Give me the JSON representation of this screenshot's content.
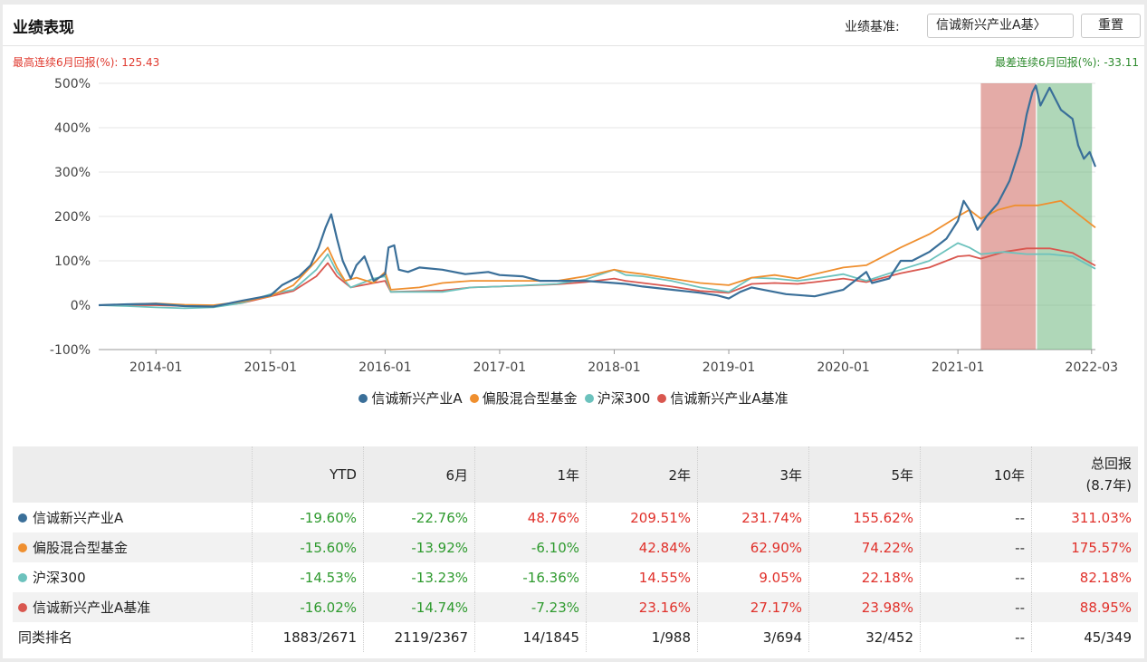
{
  "header": {
    "title": "业绩表现",
    "benchmark_label": "业绩基准:",
    "benchmark_value": "信诚新兴产业A基〉",
    "reset_label": "重置"
  },
  "stats": {
    "best_label": "最高连续6月回报(%):",
    "best_value": "125.43",
    "worst_label": "最差连续6月回报(%):",
    "worst_value": "-33.11"
  },
  "colors": {
    "fund": "#3a6f99",
    "peer": "#ef8f2f",
    "hs300": "#6cc2bd",
    "bench": "#d9574f",
    "best_band": "#c9574f",
    "worst_band": "#5fb071"
  },
  "chart_data": {
    "type": "line",
    "x_ticks": [
      "2014-01",
      "2015-01",
      "2016-01",
      "2017-01",
      "2018-01",
      "2019-01",
      "2020-01",
      "2021-01",
      "2022-03"
    ],
    "y_ticks": [
      "500%",
      "400%",
      "300%",
      "200%",
      "100%",
      "0%",
      "-100%"
    ],
    "ylim": [
      -100,
      500
    ],
    "x_range": [
      2013.5,
      2022.2
    ],
    "highlight_periods": [
      {
        "label": "best",
        "x0": 2021.2,
        "x1": 2021.68
      },
      {
        "label": "worst",
        "x0": 2021.69,
        "x1": 2022.17
      }
    ],
    "series": [
      {
        "name": "信诚新兴产业A",
        "color_key": "fund",
        "points": [
          [
            2013.5,
            0
          ],
          [
            2013.75,
            2
          ],
          [
            2014.0,
            3
          ],
          [
            2014.25,
            -2
          ],
          [
            2014.5,
            -3
          ],
          [
            2014.75,
            10
          ],
          [
            2015.0,
            22
          ],
          [
            2015.1,
            45
          ],
          [
            2015.25,
            65
          ],
          [
            2015.35,
            90
          ],
          [
            2015.42,
            130
          ],
          [
            2015.48,
            175
          ],
          [
            2015.53,
            205
          ],
          [
            2015.58,
            150
          ],
          [
            2015.63,
            100
          ],
          [
            2015.7,
            60
          ],
          [
            2015.75,
            90
          ],
          [
            2015.82,
            110
          ],
          [
            2015.9,
            55
          ],
          [
            2016.0,
            70
          ],
          [
            2016.03,
            130
          ],
          [
            2016.08,
            135
          ],
          [
            2016.12,
            80
          ],
          [
            2016.2,
            75
          ],
          [
            2016.3,
            85
          ],
          [
            2016.5,
            80
          ],
          [
            2016.7,
            70
          ],
          [
            2016.9,
            75
          ],
          [
            2017.0,
            68
          ],
          [
            2017.2,
            65
          ],
          [
            2017.35,
            55
          ],
          [
            2017.5,
            55
          ],
          [
            2017.75,
            55
          ],
          [
            2018.0,
            50
          ],
          [
            2018.1,
            48
          ],
          [
            2018.25,
            42
          ],
          [
            2018.5,
            35
          ],
          [
            2018.75,
            28
          ],
          [
            2018.9,
            22
          ],
          [
            2019.0,
            15
          ],
          [
            2019.1,
            30
          ],
          [
            2019.2,
            40
          ],
          [
            2019.3,
            35
          ],
          [
            2019.5,
            25
          ],
          [
            2019.75,
            20
          ],
          [
            2020.0,
            35
          ],
          [
            2020.1,
            55
          ],
          [
            2020.2,
            75
          ],
          [
            2020.25,
            50
          ],
          [
            2020.4,
            60
          ],
          [
            2020.5,
            100
          ],
          [
            2020.6,
            100
          ],
          [
            2020.75,
            120
          ],
          [
            2020.9,
            150
          ],
          [
            2021.0,
            190
          ],
          [
            2021.05,
            235
          ],
          [
            2021.1,
            215
          ],
          [
            2021.17,
            170
          ],
          [
            2021.25,
            200
          ],
          [
            2021.35,
            230
          ],
          [
            2021.45,
            280
          ],
          [
            2021.55,
            360
          ],
          [
            2021.6,
            430
          ],
          [
            2021.65,
            480
          ],
          [
            2021.68,
            495
          ],
          [
            2021.72,
            450
          ],
          [
            2021.76,
            470
          ],
          [
            2021.8,
            490
          ],
          [
            2021.9,
            440
          ],
          [
            2022.0,
            420
          ],
          [
            2022.05,
            360
          ],
          [
            2022.1,
            330
          ],
          [
            2022.15,
            345
          ],
          [
            2022.2,
            312
          ]
        ]
      },
      {
        "name": "偏股混合型基金",
        "color_key": "peer",
        "points": [
          [
            2013.5,
            0
          ],
          [
            2013.75,
            2
          ],
          [
            2014.0,
            4
          ],
          [
            2014.25,
            1
          ],
          [
            2014.5,
            0
          ],
          [
            2014.75,
            8
          ],
          [
            2015.0,
            20
          ],
          [
            2015.2,
            45
          ],
          [
            2015.4,
            100
          ],
          [
            2015.5,
            130
          ],
          [
            2015.58,
            85
          ],
          [
            2015.65,
            55
          ],
          [
            2015.75,
            62
          ],
          [
            2015.9,
            50
          ],
          [
            2016.0,
            75
          ],
          [
            2016.05,
            35
          ],
          [
            2016.3,
            40
          ],
          [
            2016.5,
            50
          ],
          [
            2016.75,
            55
          ],
          [
            2017.0,
            55
          ],
          [
            2017.5,
            55
          ],
          [
            2017.75,
            65
          ],
          [
            2018.0,
            80
          ],
          [
            2018.1,
            75
          ],
          [
            2018.25,
            70
          ],
          [
            2018.5,
            60
          ],
          [
            2018.75,
            50
          ],
          [
            2019.0,
            45
          ],
          [
            2019.2,
            62
          ],
          [
            2019.4,
            68
          ],
          [
            2019.6,
            60
          ],
          [
            2019.75,
            70
          ],
          [
            2020.0,
            85
          ],
          [
            2020.2,
            90
          ],
          [
            2020.5,
            130
          ],
          [
            2020.75,
            160
          ],
          [
            2021.0,
            200
          ],
          [
            2021.1,
            215
          ],
          [
            2021.2,
            195
          ],
          [
            2021.35,
            215
          ],
          [
            2021.5,
            225
          ],
          [
            2021.7,
            225
          ],
          [
            2021.9,
            235
          ],
          [
            2022.05,
            205
          ],
          [
            2022.2,
            175
          ]
        ]
      },
      {
        "name": "沪深300",
        "color_key": "hs300",
        "points": [
          [
            2013.5,
            0
          ],
          [
            2013.75,
            -2
          ],
          [
            2014.0,
            -5
          ],
          [
            2014.25,
            -7
          ],
          [
            2014.5,
            -5
          ],
          [
            2014.75,
            5
          ],
          [
            2015.0,
            25
          ],
          [
            2015.2,
            35
          ],
          [
            2015.4,
            80
          ],
          [
            2015.5,
            115
          ],
          [
            2015.58,
            75
          ],
          [
            2015.7,
            40
          ],
          [
            2015.9,
            60
          ],
          [
            2016.0,
            65
          ],
          [
            2016.05,
            30
          ],
          [
            2016.5,
            30
          ],
          [
            2016.75,
            40
          ],
          [
            2017.0,
            42
          ],
          [
            2017.5,
            48
          ],
          [
            2017.75,
            58
          ],
          [
            2018.0,
            80
          ],
          [
            2018.1,
            68
          ],
          [
            2018.25,
            65
          ],
          [
            2018.5,
            55
          ],
          [
            2018.75,
            40
          ],
          [
            2019.0,
            30
          ],
          [
            2019.2,
            62
          ],
          [
            2019.4,
            60
          ],
          [
            2019.6,
            55
          ],
          [
            2019.75,
            60
          ],
          [
            2020.0,
            70
          ],
          [
            2020.2,
            55
          ],
          [
            2020.5,
            80
          ],
          [
            2020.75,
            100
          ],
          [
            2021.0,
            140
          ],
          [
            2021.1,
            130
          ],
          [
            2021.2,
            115
          ],
          [
            2021.4,
            120
          ],
          [
            2021.6,
            115
          ],
          [
            2021.8,
            115
          ],
          [
            2022.0,
            110
          ],
          [
            2022.2,
            82
          ]
        ]
      },
      {
        "name": "信诚新兴产业A基准",
        "color_key": "bench",
        "points": [
          [
            2013.5,
            0
          ],
          [
            2013.75,
            0
          ],
          [
            2014.0,
            0
          ],
          [
            2014.25,
            -2
          ],
          [
            2014.5,
            -2
          ],
          [
            2014.75,
            5
          ],
          [
            2015.0,
            20
          ],
          [
            2015.2,
            32
          ],
          [
            2015.4,
            65
          ],
          [
            2015.5,
            95
          ],
          [
            2015.58,
            65
          ],
          [
            2015.7,
            40
          ],
          [
            2015.9,
            50
          ],
          [
            2016.0,
            55
          ],
          [
            2016.05,
            30
          ],
          [
            2016.5,
            33
          ],
          [
            2016.75,
            40
          ],
          [
            2017.0,
            42
          ],
          [
            2017.5,
            47
          ],
          [
            2017.75,
            52
          ],
          [
            2018.0,
            60
          ],
          [
            2018.1,
            55
          ],
          [
            2018.25,
            50
          ],
          [
            2018.5,
            42
          ],
          [
            2018.75,
            32
          ],
          [
            2019.0,
            28
          ],
          [
            2019.2,
            48
          ],
          [
            2019.4,
            50
          ],
          [
            2019.6,
            48
          ],
          [
            2019.75,
            52
          ],
          [
            2020.0,
            60
          ],
          [
            2020.2,
            52
          ],
          [
            2020.5,
            72
          ],
          [
            2020.75,
            85
          ],
          [
            2021.0,
            110
          ],
          [
            2021.1,
            112
          ],
          [
            2021.2,
            105
          ],
          [
            2021.4,
            120
          ],
          [
            2021.6,
            128
          ],
          [
            2021.8,
            128
          ],
          [
            2022.0,
            118
          ],
          [
            2022.2,
            89
          ]
        ]
      }
    ]
  },
  "legend": [
    {
      "label": "信诚新兴产业A",
      "color_key": "fund"
    },
    {
      "label": "偏股混合型基金",
      "color_key": "peer"
    },
    {
      "label": "沪深300",
      "color_key": "hs300"
    },
    {
      "label": "信诚新兴产业A基准",
      "color_key": "bench"
    }
  ],
  "table": {
    "headers": [
      "YTD",
      "6月",
      "1年",
      "2年",
      "3年",
      "5年",
      "10年",
      "总回报"
    ],
    "total_sub": "(8.7年)",
    "rows": [
      {
        "name": "信诚新兴产业A",
        "color_key": "fund",
        "values": [
          "-19.60%",
          "-22.76%",
          "48.76%",
          "209.51%",
          "231.74%",
          "155.62%",
          "--",
          "311.03%"
        ]
      },
      {
        "name": "偏股混合型基金",
        "color_key": "peer",
        "values": [
          "-15.60%",
          "-13.92%",
          "-6.10%",
          "42.84%",
          "62.90%",
          "74.22%",
          "--",
          "175.57%"
        ]
      },
      {
        "name": "沪深300",
        "color_key": "hs300",
        "values": [
          "-14.53%",
          "-13.23%",
          "-16.36%",
          "14.55%",
          "9.05%",
          "22.18%",
          "--",
          "82.18%"
        ]
      },
      {
        "name": "信诚新兴产业A基准",
        "color_key": "bench",
        "values": [
          "-16.02%",
          "-14.74%",
          "-7.23%",
          "23.16%",
          "27.17%",
          "23.98%",
          "--",
          "88.95%"
        ]
      }
    ],
    "rank_label": "同类排名",
    "rank_values": [
      "1883/2671",
      "2119/2367",
      "14/1845",
      "1/988",
      "3/694",
      "32/452",
      "--",
      "45/349"
    ]
  }
}
